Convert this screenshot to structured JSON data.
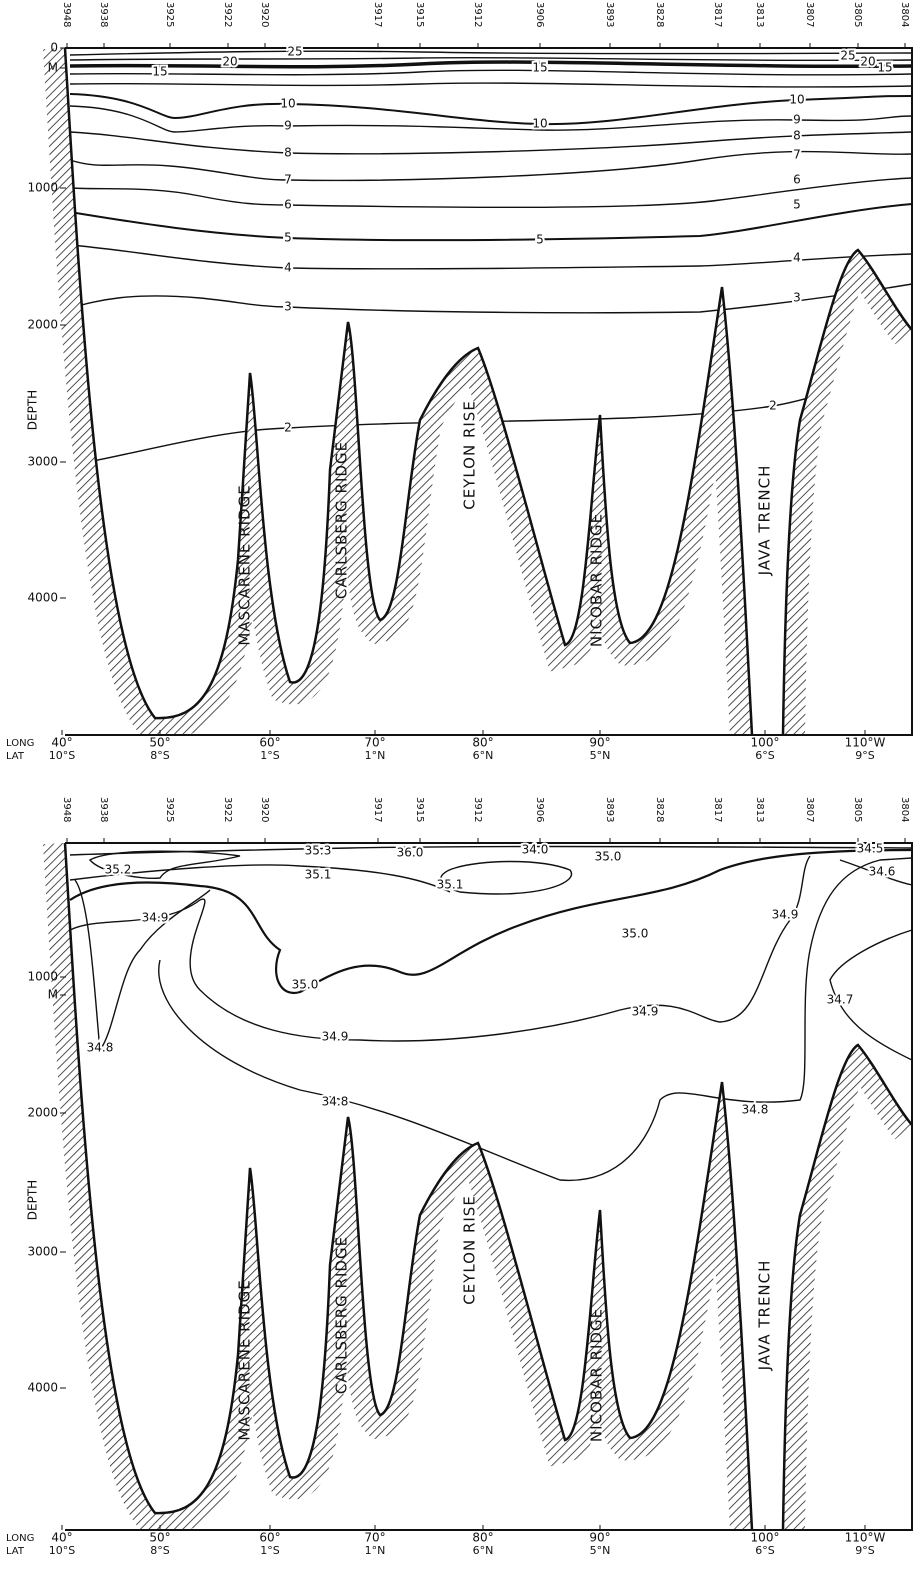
{
  "panels": [
    {
      "stations": [
        "3948",
        "3938",
        "3925",
        "3922",
        "3920",
        "3917",
        "3915",
        "3912",
        "3906",
        "3893",
        "3828",
        "3817",
        "3813",
        "3807",
        "3805",
        "3804"
      ],
      "depth_labels": [
        "0",
        "M",
        "1000",
        "2000",
        "3000",
        "4000"
      ],
      "depth_title": "DEPTH",
      "long_title": "LONG",
      "lat_title": "LAT",
      "longitudes": [
        "40°",
        "50°",
        "60°",
        "70°",
        "80°",
        "90°",
        "100°",
        "110°W"
      ],
      "latitudes": [
        "10°S",
        "8°S",
        "1°S",
        "1°N",
        "6°N",
        "5°N",
        "6°S",
        "9°S"
      ],
      "contour_labels": [
        "25",
        "20",
        "15",
        "15",
        "25",
        "20",
        "15",
        "10",
        "10",
        "10",
        "9",
        "9",
        "8",
        "8",
        "7",
        "7",
        "6",
        "6",
        "5",
        "5",
        "5",
        "4",
        "4",
        "3",
        "3",
        "2",
        "2"
      ],
      "features": [
        "MASCARENE RIDGE",
        "CARLSBERG RIDGE",
        "CEYLON RISE",
        "NICOBAR RIDGE",
        "JAVA TRENCH"
      ]
    },
    {
      "stations": [
        "3948",
        "3938",
        "3925",
        "3922",
        "3920",
        "3917",
        "3915",
        "3912",
        "3906",
        "3893",
        "3828",
        "3817",
        "3813",
        "3807",
        "3805",
        "3804"
      ],
      "depth_labels": [
        "1000",
        "M",
        "2000",
        "3000",
        "4000"
      ],
      "depth_title": "DEPTH",
      "long_title": "LONG",
      "lat_title": "LAT",
      "longitudes": [
        "40°",
        "50°",
        "60°",
        "70°",
        "80°",
        "90°",
        "100°",
        "110°W"
      ],
      "latitudes": [
        "10°S",
        "8°S",
        "1°S",
        "1°N",
        "6°N",
        "5°N",
        "6°S",
        "9°S"
      ],
      "contour_labels": [
        "35.2",
        "35.3",
        "35.1",
        "36.0",
        "34.0",
        "35.0",
        "34.5",
        "34.6",
        "35.1",
        "34.9",
        "35.0",
        "34.9",
        "35.0",
        "34.9",
        "34.7",
        "34.9",
        "34.8",
        "34.8",
        "34.8"
      ],
      "features": [
        "MASCARENE RIDGE",
        "CARLSBERG RIDGE",
        "CEYLON RISE",
        "NICOBAR RIDGE",
        "JAVA TRENCH"
      ]
    }
  ]
}
